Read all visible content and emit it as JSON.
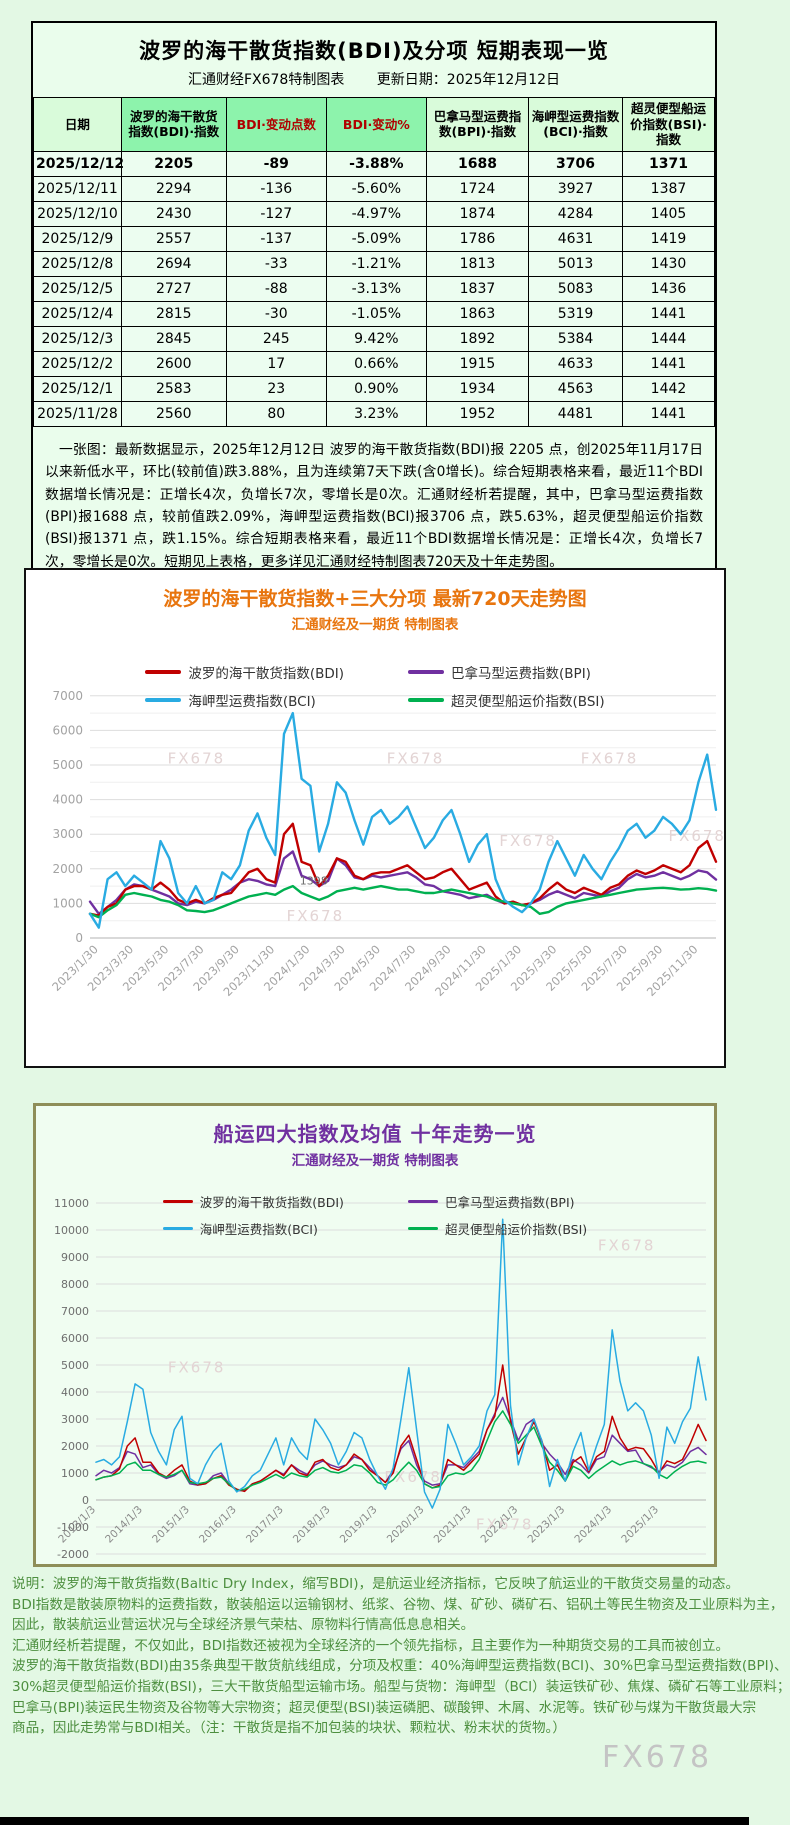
{
  "page": {
    "watermark": "FX678"
  },
  "chart_data": [
    {
      "type": "table",
      "title": "波罗的海干散货指数(BDI)及分项 短期表现一览",
      "subtitle": "汇通财经FX678特制图表",
      "update_label": "更新日期：2025年12月12日",
      "columns": [
        "日期",
        "波罗的海干散货指数(BDI)·指数",
        "BDI·变动点数",
        "BDI·变动%",
        "巴拿马型运费指数(BPI)·指数",
        "海岬型运费指数(BCI)·指数",
        "超灵便型船运价指数(BSI)·指数"
      ],
      "col_styles": [
        "pale",
        "mid",
        "mid red",
        "mid red",
        "pale",
        "pale",
        "pale"
      ],
      "rows": [
        [
          "2025/12/12",
          "2205",
          "-89",
          "-3.88%",
          "1688",
          "3706",
          "1371"
        ],
        [
          "2025/12/11",
          "2294",
          "-136",
          "-5.60%",
          "1724",
          "3927",
          "1387"
        ],
        [
          "2025/12/10",
          "2430",
          "-127",
          "-4.97%",
          "1874",
          "4284",
          "1405"
        ],
        [
          "2025/12/9",
          "2557",
          "-137",
          "-5.09%",
          "1786",
          "4631",
          "1419"
        ],
        [
          "2025/12/8",
          "2694",
          "-33",
          "-1.21%",
          "1813",
          "5013",
          "1430"
        ],
        [
          "2025/12/5",
          "2727",
          "-88",
          "-3.13%",
          "1837",
          "5083",
          "1436"
        ],
        [
          "2025/12/4",
          "2815",
          "-30",
          "-1.05%",
          "1863",
          "5319",
          "1441"
        ],
        [
          "2025/12/3",
          "2845",
          "245",
          "9.42%",
          "1892",
          "5384",
          "1444"
        ],
        [
          "2025/12/2",
          "2600",
          "17",
          "0.66%",
          "1915",
          "4633",
          "1441"
        ],
        [
          "2025/12/1",
          "2583",
          "23",
          "0.90%",
          "1934",
          "4563",
          "1442"
        ],
        [
          "2025/11/28",
          "2560",
          "80",
          "3.23%",
          "1952",
          "4481",
          "1441"
        ]
      ],
      "note": "　一张图：最新数据显示，2025年12月12日 波罗的海干散货指数(BDI)报 2205 点，创2025年11月17日以来新低水平，环比(较前值)跌3.88%，且为连续第7天下跌(含0增长)。综合短期表格来看，最近11个BDI数据增长情况是：正增长4次，负增长7次，零增长是0次。汇通财经析若提醒，其中，巴拿马型运费指数(BPI)报1688 点，较前值跌2.09%，海岬型运费指数(BCI)报3706 点，跌5.63%，超灵便型船运价指数(BSI)报1371 点，跌1.15%。综合短期表格来看，最近11个BDI数据增长情况是：正增长4次，负增长7次，零增长是0次。短期见上表格，更多详见汇通财经特制图表720天及十年走势图。"
    },
    {
      "type": "line",
      "title": "波罗的海干散货指数+三大分项  最新720天走势图",
      "subtitle": "汇通财经及一期货 特制图表",
      "title_color": "#e8750e",
      "ylim": [
        0,
        7000
      ],
      "grid": true,
      "legend_position": "top",
      "watermark_text": "FX678",
      "x_labels": [
        "2023/1/30",
        "2023/3/30",
        "2023/5/30",
        "2023/7/30",
        "2023/9/30",
        "2023/11/30",
        "2024/1/30",
        "2024/3/30",
        "2024/5/30",
        "2024/7/30",
        "2024/9/30",
        "2024/11/30",
        "2025/1/30",
        "2025/3/30",
        "2025/5/30",
        "2025/7/30",
        "2025/9/30",
        "2025/11/30"
      ],
      "x_label_span": [
        0.014,
        0.972
      ],
      "draw_order": [
        1,
        0,
        3,
        2
      ],
      "watermarks": [
        {
          "x": 0.17,
          "y": 0.28
        },
        {
          "x": 0.52,
          "y": 0.28
        },
        {
          "x": 0.83,
          "y": 0.28
        },
        {
          "x": 0.7,
          "y": 0.62
        },
        {
          "x": 0.97,
          "y": 0.6
        },
        {
          "x": 0.36,
          "y": 0.93
        }
      ],
      "annotations": [
        {
          "text": "1398",
          "fx": 0.335,
          "v": 1550
        }
      ],
      "series": [
        {
          "name": "波罗的海干散货指数(BDI)",
          "color": "#c00000",
          "values": [
            700,
            650,
            900,
            1000,
            1400,
            1500,
            1500,
            1400,
            1600,
            1400,
            1100,
            1000,
            1100,
            1000,
            1150,
            1250,
            1300,
            1600,
            1900,
            2000,
            1700,
            1600,
            3000,
            3300,
            2200,
            2100,
            1500,
            1800,
            2300,
            2200,
            1800,
            1700,
            1850,
            1900,
            1900,
            2000,
            2100,
            1900,
            1700,
            1750,
            1900,
            2000,
            1700,
            1400,
            1500,
            1600,
            1200,
            1000,
            1050,
            950,
            1000,
            1150,
            1400,
            1600,
            1400,
            1300,
            1450,
            1350,
            1250,
            1450,
            1550,
            1800,
            1950,
            1850,
            1950,
            2100,
            2000,
            1900,
            2100,
            2600,
            2800,
            2205
          ]
        },
        {
          "name": "巴拿马型运费指数(BPI)",
          "color": "#7030a0",
          "values": [
            1050,
            700,
            900,
            1100,
            1400,
            1550,
            1500,
            1400,
            1300,
            1200,
            1000,
            950,
            1050,
            1000,
            1100,
            1250,
            1400,
            1600,
            1700,
            1650,
            1550,
            1500,
            2300,
            2500,
            1800,
            1700,
            1500,
            1650,
            2300,
            2100,
            1750,
            1700,
            1800,
            1750,
            1800,
            1850,
            1900,
            1750,
            1550,
            1500,
            1350,
            1300,
            1250,
            1150,
            1200,
            1250,
            1100,
            1000,
            1050,
            950,
            1000,
            1100,
            1250,
            1350,
            1250,
            1150,
            1300,
            1250,
            1200,
            1350,
            1450,
            1700,
            1850,
            1750,
            1800,
            1900,
            1800,
            1700,
            1800,
            1950,
            1900,
            1688
          ]
        },
        {
          "name": "海岬型运费指数(BCI)",
          "color": "#29abe2",
          "values": [
            700,
            300,
            1700,
            1900,
            1500,
            1800,
            1600,
            1400,
            2800,
            2300,
            1300,
            1000,
            1500,
            1000,
            1100,
            1900,
            1700,
            2100,
            3100,
            3600,
            2900,
            2400,
            5900,
            6500,
            4600,
            4400,
            2500,
            3300,
            4500,
            4200,
            3400,
            2700,
            3500,
            3700,
            3300,
            3500,
            3800,
            3200,
            2600,
            2900,
            3400,
            3700,
            3000,
            2200,
            2700,
            3000,
            1700,
            1100,
            900,
            750,
            1000,
            1400,
            2200,
            2800,
            2300,
            1800,
            2400,
            2000,
            1700,
            2200,
            2600,
            3100,
            3300,
            2900,
            3100,
            3500,
            3300,
            3000,
            3400,
            4500,
            5300,
            3706
          ]
        },
        {
          "name": "超灵便型船运价指数(BSI)",
          "color": "#00b050",
          "values": [
            700,
            600,
            800,
            950,
            1250,
            1300,
            1250,
            1200,
            1100,
            1050,
            950,
            800,
            780,
            750,
            800,
            900,
            1000,
            1100,
            1200,
            1250,
            1300,
            1250,
            1400,
            1500,
            1300,
            1200,
            1100,
            1200,
            1350,
            1400,
            1450,
            1400,
            1450,
            1500,
            1450,
            1400,
            1400,
            1350,
            1300,
            1300,
            1350,
            1400,
            1350,
            1300,
            1250,
            1200,
            1100,
            1050,
            1000,
            950,
            900,
            700,
            750,
            900,
            1000,
            1050,
            1100,
            1150,
            1200,
            1250,
            1300,
            1350,
            1400,
            1420,
            1440,
            1450,
            1430,
            1400,
            1410,
            1440,
            1420,
            1371
          ]
        }
      ]
    },
    {
      "type": "line",
      "title": "船运四大指数及均值 十年走势一览",
      "subtitle": "汇通财经及一期货 特制图表",
      "title_color": "#7030a0",
      "ylim": [
        -2000,
        11000
      ],
      "grid": true,
      "legend_position": "top",
      "watermark_text": "FX678",
      "x_labels": [
        "2013/1/3",
        "2014/1/3",
        "2015/1/3",
        "2016/1/3",
        "2017/1/3",
        "2018/1/3",
        "2019/1/3",
        "2020/1/3",
        "2021/1/3",
        "2022/1/3",
        "2023/1/3",
        "2024/1/3",
        "2025/1/3"
      ],
      "x_label_span": [
        0.0,
        0.923
      ],
      "draw_order": [
        1,
        0,
        3,
        2
      ],
      "watermarks": [
        {
          "x": 0.165,
          "y": 0.57
        },
        {
          "x": 0.52,
          "y": 0.94
        },
        {
          "x": 0.87,
          "y": 0.16
        },
        {
          "x": 0.67,
          "y": 1.1
        }
      ],
      "annotations": [],
      "series": [
        {
          "name": "波罗的海干散货指数(BDI)",
          "color": "#c00000",
          "values": [
            750,
            850,
            900,
            1150,
            2000,
            2300,
            1400,
            1400,
            1000,
            850,
            1100,
            1300,
            700,
            560,
            600,
            800,
            900,
            550,
            400,
            320,
            600,
            700,
            900,
            1100,
            900,
            1300,
            1000,
            900,
            1400,
            1500,
            1200,
            1100,
            1300,
            1700,
            1500,
            1100,
            900,
            650,
            1000,
            2000,
            2400,
            1500,
            600,
            450,
            550,
            1500,
            1300,
            1100,
            1400,
            1700,
            2600,
            3100,
            5000,
            2900,
            1700,
            2300,
            2900,
            2200,
            1100,
            1300,
            700,
            1400,
            1600,
            1050,
            1600,
            1800,
            3100,
            2300,
            1850,
            1950,
            1900,
            1500,
            1000,
            1450,
            1350,
            1500,
            2100,
            2800,
            2205
          ]
        },
        {
          "name": "巴拿马型运费指数(BPI)",
          "color": "#7030a0",
          "values": [
            900,
            1100,
            1000,
            1200,
            1800,
            1700,
            1200,
            1300,
            950,
            800,
            900,
            1100,
            600,
            550,
            600,
            900,
            1000,
            600,
            350,
            350,
            600,
            700,
            900,
            1100,
            950,
            1300,
            1100,
            950,
            1300,
            1450,
            1300,
            1200,
            1300,
            1600,
            1500,
            1200,
            900,
            650,
            1100,
            1900,
            2200,
            1300,
            700,
            550,
            600,
            1300,
            1300,
            1200,
            1500,
            1800,
            2600,
            3200,
            3800,
            3000,
            2200,
            2800,
            3000,
            2100,
            1700,
            1400,
            950,
            1500,
            1300,
            1000,
            1500,
            1600,
            2400,
            2100,
            1800,
            1850,
            1350,
            1200,
            1050,
            1300,
            1200,
            1400,
            1800,
            1950,
            1688
          ]
        },
        {
          "name": "海岬型运费指数(BCI)",
          "color": "#29abe2",
          "values": [
            1400,
            1500,
            1300,
            1600,
            2900,
            4300,
            4100,
            2500,
            1800,
            1300,
            2600,
            3100,
            800,
            600,
            1300,
            1800,
            2100,
            700,
            300,
            500,
            900,
            1100,
            1700,
            2300,
            1300,
            2300,
            1800,
            1500,
            3000,
            2600,
            2100,
            1300,
            1800,
            2500,
            2300,
            1500,
            900,
            400,
            1200,
            3000,
            4900,
            2600,
            300,
            -300,
            400,
            2800,
            2100,
            1300,
            1600,
            2000,
            3300,
            3900,
            10400,
            3500,
            1300,
            2300,
            3000,
            2200,
            500,
            1500,
            700,
            1800,
            2500,
            1100,
            2000,
            2800,
            6300,
            4400,
            3300,
            3600,
            3300,
            2400,
            800,
            2700,
            2100,
            2900,
            3400,
            5300,
            3706
          ]
        },
        {
          "name": "超灵便型船运价指数(BSI)",
          "color": "#00b050",
          "values": [
            750,
            850,
            900,
            1000,
            1300,
            1400,
            1100,
            1100,
            950,
            850,
            950,
            1100,
            650,
            600,
            650,
            800,
            850,
            600,
            350,
            400,
            550,
            650,
            800,
            950,
            800,
            1000,
            900,
            850,
            1100,
            1200,
            1050,
            1000,
            1100,
            1300,
            1250,
            1000,
            650,
            550,
            750,
            1100,
            1400,
            1100,
            600,
            450,
            500,
            900,
            1000,
            950,
            1100,
            1500,
            2200,
            2900,
            3300,
            2800,
            2100,
            2400,
            2700,
            2000,
            1400,
            1100,
            700,
            1250,
            1100,
            800,
            1050,
            1250,
            1450,
            1300,
            1400,
            1450,
            1350,
            1250,
            950,
            800,
            1050,
            1250,
            1400,
            1440,
            1371
          ]
        }
      ]
    }
  ],
  "footer": {
    "lines": [
      "说明：波罗的海干散货指数(Baltic Dry Index，缩写BDI)，是航运业经济指标，它反映了航运业的干散货交易量的动态。",
      "BDI指数是散装原物料的运费指数，散装船运以运输钢材、纸浆、谷物、煤、矿砂、磷矿石、铝矾土等民生物资及工业原料为主，",
      "因此，散装航运业营运状况与全球经济景气荣枯、原物料行情高低息息相关。",
      "汇通财经析若提醒，不仅如此，BDI指数还被视为全球经济的一个领先指标，且主要作为一种期货交易的工具而被创立。",
      "波罗的海干散货指数(BDI)由35条典型干散货航线组成，分项及权重：40%海岬型运费指数(BCI)、30%巴拿马型运费指数(BPI)、",
      "30%超灵便型船运价指数(BSI)，三大干散货船型运输市场。船型与货物：海岬型（BCI）装运铁矿砂、焦煤、磷矿石等工业原料；",
      "巴拿马(BPI)装运民生物资及谷物等大宗物资；超灵便型(BSI)装运磷肥、碳酸钾、木屑、水泥等。铁矿砂与煤为干散货最大宗",
      "商品，因此走势常与BDI相关。（注：干散货是指不加包装的块状、颗粒状、粉末状的货物。）"
    ]
  }
}
